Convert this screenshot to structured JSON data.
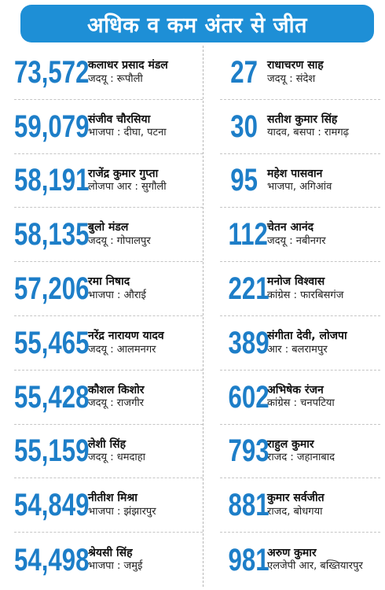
{
  "title": "अधिक व कम अंतर से जीत",
  "colors": {
    "accent": "#1d7ec8",
    "header_bg": "#1e8fd6"
  },
  "left_column": [
    {
      "margin": "73,572",
      "name": "कलाधर प्रसाद मंडल",
      "party_seat": "जदयू : रूपौली"
    },
    {
      "margin": "59,079",
      "name": "संजीव चौरसिया",
      "party_seat": "भाजपा : दीघा, पटना"
    },
    {
      "margin": "58,191",
      "name": "राजेंद्र कुमार गुप्ता",
      "party_seat": "लोजपा आर : सुगौली"
    },
    {
      "margin": "58,135",
      "name": "बुलो मंडल",
      "party_seat": "जदयू : गोपालपुर"
    },
    {
      "margin": "57,206",
      "name": "रमा निषाद",
      "party_seat": "भाजपा : औराई"
    },
    {
      "margin": "55,465",
      "name": "नरेंद्र नारायण यादव",
      "party_seat": "जदयू : आलमनगर"
    },
    {
      "margin": "55,428",
      "name": "कौशल किशोर",
      "party_seat": "जदयू : राजगीर"
    },
    {
      "margin": "55,159",
      "name": "लेशी सिंह",
      "party_seat": "जदयू : धमदाहा"
    },
    {
      "margin": "54,849",
      "name": "नीतीश मिश्रा",
      "party_seat": "भाजपा : झंझारपुर"
    },
    {
      "margin": "54,498",
      "name": "श्रेयसी सिंह",
      "party_seat": "भाजपा : जमुई"
    }
  ],
  "right_column": [
    {
      "margin": "27",
      "name": "राधाचरण साह",
      "party_seat": "जदयू : संदेश"
    },
    {
      "margin": "30",
      "name": "सतीश कुमार सिंह",
      "party_seat": "यादव, बसपा : रामगढ़"
    },
    {
      "margin": "95",
      "name": "महेश पासवान",
      "party_seat": "भाजपा, अगिआंव"
    },
    {
      "margin": "112",
      "name": "चेतन आनंद",
      "party_seat": "जदयू : नबीनगर"
    },
    {
      "margin": "221",
      "name": "मनोज विश्वास",
      "party_seat": "कांग्रेस : फारबिसगंज"
    },
    {
      "margin": "389",
      "name": "संगीता देवी, लोजपा",
      "party_seat": "आर : बलरामपुर"
    },
    {
      "margin": "602",
      "name": "अभिषेक रंजन",
      "party_seat": "कांग्रेस : चनपटिया"
    },
    {
      "margin": "793",
      "name": "राहुल कुमार",
      "party_seat": "राजद : जहानाबाद"
    },
    {
      "margin": "881",
      "name": "कुमार सर्वजीत",
      "party_seat": "राजद, बोधगया"
    },
    {
      "margin": "981",
      "name": "अरुण कुमार",
      "party_seat": "एलजेपी आर, बख्तियारपुर"
    }
  ]
}
